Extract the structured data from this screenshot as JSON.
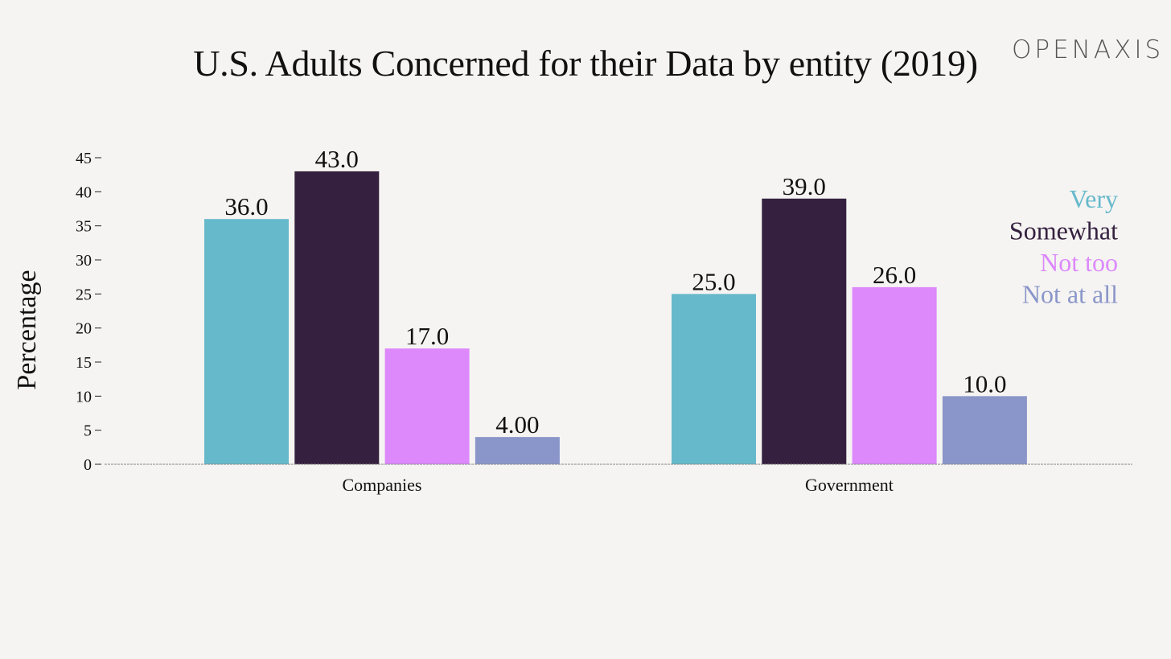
{
  "title": "U.S. Adults Concerned for their Data by entity (2019)",
  "brand": "OPENAXIS",
  "chart_data": {
    "type": "bar",
    "title": "U.S. Adults Concerned for their Data by entity (2019)",
    "xlabel": "",
    "ylabel": "Percentage",
    "categories": [
      "Companies",
      "Government"
    ],
    "ylim": [
      0,
      45
    ],
    "yticks": [
      0,
      5,
      10,
      15,
      20,
      25,
      30,
      35,
      40,
      45
    ],
    "grid": false,
    "legend_position": "top-right",
    "series": [
      {
        "name": "Very",
        "color": "#66b9cb",
        "values": [
          36,
          25
        ],
        "labels": [
          "36.0",
          "25.0"
        ]
      },
      {
        "name": "Somewhat",
        "color": "#35213f",
        "values": [
          43,
          39
        ],
        "labels": [
          "43.0",
          "39.0"
        ]
      },
      {
        "name": "Not too",
        "color": "#dd88fb",
        "values": [
          17,
          26
        ],
        "labels": [
          "17.0",
          "26.0"
        ]
      },
      {
        "name": "Not at all",
        "color": "#8a96c9",
        "values": [
          4,
          10
        ],
        "labels": [
          "4.00",
          "10.0"
        ]
      }
    ]
  }
}
